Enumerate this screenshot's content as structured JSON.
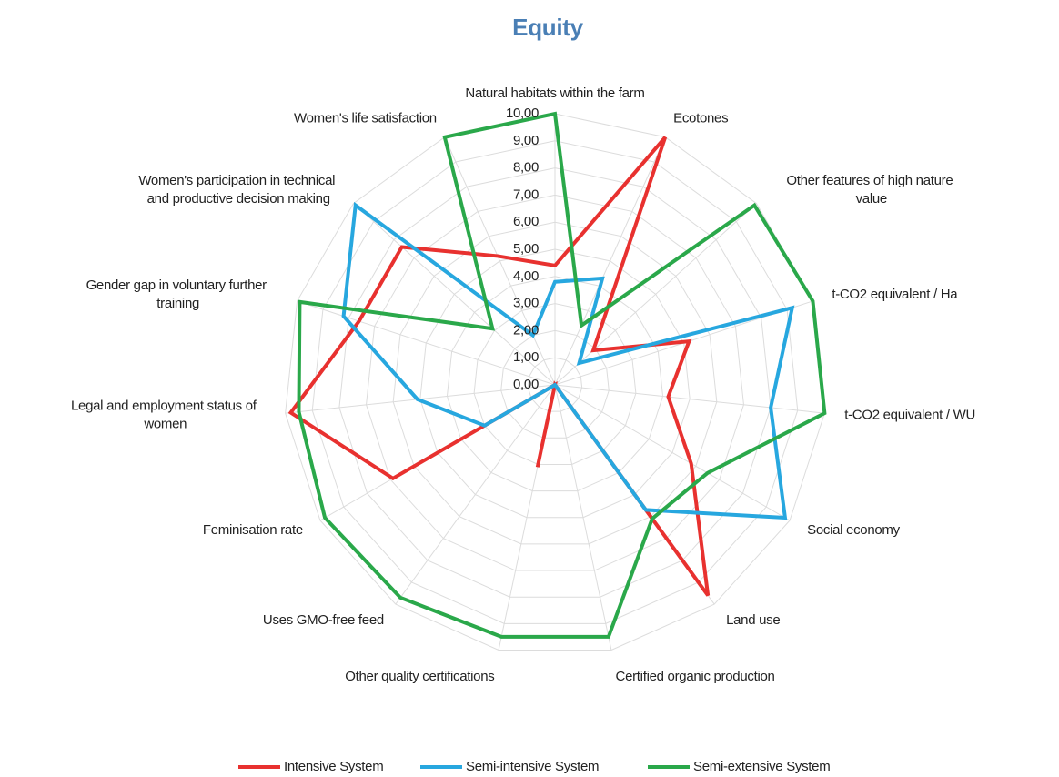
{
  "chart_data": {
    "type": "radar",
    "title": "Equity",
    "categories": [
      "Natural habitats within the farm",
      "Ecotones",
      "Other features of high nature value",
      "t-CO2 equivalent / Ha",
      "t-CO2 equivalent / WU",
      "Social economy",
      "Land use",
      "Certified organic production",
      "Other quality certifications",
      "Uses GMO-free feed",
      "Feminisation rate",
      "Legal and employment status of women",
      "Gender gap in voluntary further training",
      "Women's participation in technical and productive decision making",
      "Women's life satisfaction"
    ],
    "series": [
      {
        "name": "Intensive System",
        "color": "#e8312f",
        "values": [
          4.4,
          10,
          1.9,
          5.2,
          4.2,
          5.8,
          9.6,
          0,
          3.1,
          0,
          6.9,
          9.8,
          7.6,
          7.6,
          5.2
        ]
      },
      {
        "name": "Semi-intensive System",
        "color": "#27a7df",
        "values": [
          3.8,
          4.3,
          1.2,
          9.2,
          8.0,
          9.8,
          5.7,
          0,
          0,
          0,
          3.0,
          5.1,
          8.2,
          9.9,
          2.0
        ]
      },
      {
        "name": "Semi-extensive System",
        "color": "#2aa84a",
        "values": [
          10,
          2.4,
          9.9,
          10,
          10,
          6.5,
          6.1,
          9.5,
          9.5,
          9.7,
          9.8,
          9.5,
          9.9,
          3.1,
          10
        ]
      }
    ],
    "ylim": [
      0,
      10
    ],
    "yticks": [
      {
        "value": 0,
        "label": "0,00"
      },
      {
        "value": 1,
        "label": "1,00"
      },
      {
        "value": 2,
        "label": "2,00"
      },
      {
        "value": 3,
        "label": "3,00"
      },
      {
        "value": 4,
        "label": "4,00"
      },
      {
        "value": 5,
        "label": "5,00"
      },
      {
        "value": 6,
        "label": "6,00"
      },
      {
        "value": 7,
        "label": "7,00"
      },
      {
        "value": 8,
        "label": "8,00"
      },
      {
        "value": 9,
        "label": "9,00"
      },
      {
        "value": 10,
        "label": "10,00"
      }
    ],
    "grid": true,
    "legend": "bottom"
  }
}
